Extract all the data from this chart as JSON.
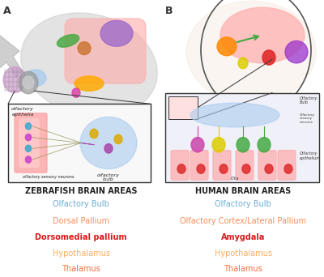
{
  "panel_a_label": "A",
  "panel_b_label": "B",
  "zebrafish_title": "ZEBRAFISH BRAIN AREAS",
  "human_title": "HUMAN BRAIN AREAS",
  "zebrafish_labels": [
    {
      "text": "Olfactory Bulb",
      "color": "#6baed6",
      "bold": false
    },
    {
      "text": "Dorsal Pallium",
      "color": "#fc8d59",
      "bold": false
    },
    {
      "text": "Dorsomedial pallium",
      "color": "#d7191c",
      "bold": true
    },
    {
      "text": "Hypothalamus",
      "color": "#fdae61",
      "bold": false
    },
    {
      "text": "Thalamus",
      "color": "#f46d43",
      "bold": false
    }
  ],
  "human_labels": [
    {
      "text": "Olfactory Bulb",
      "color": "#6baed6",
      "bold": false
    },
    {
      "text": "Olfactory Cortex/Lateral Pallium",
      "color": "#fc8d59",
      "bold": false
    },
    {
      "text": "Amygdala",
      "color": "#d7191c",
      "bold": true
    },
    {
      "text": "Hypothalamus",
      "color": "#fdae61",
      "bold": false
    },
    {
      "text": "Thalamus",
      "color": "#f46d43",
      "bold": false
    }
  ],
  "bg_color": "#ffffff",
  "title_fontsize": 7,
  "label_fontsize": 7,
  "panel_label_fontsize": 9
}
